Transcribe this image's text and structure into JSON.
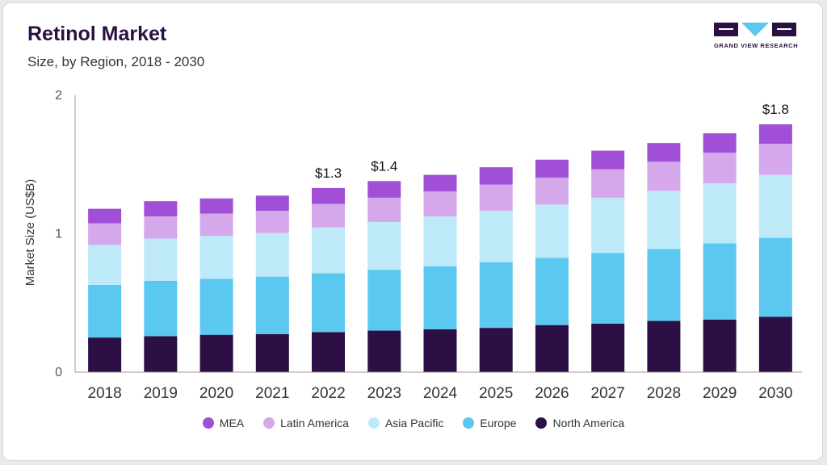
{
  "header": {
    "title": "Retinol Market",
    "subtitle": "Size, by Region, 2018 - 2030",
    "logo_text": "GRAND VIEW RESEARCH"
  },
  "colors": {
    "logo": "#2a1141",
    "logo_accent": "#5bc8f0"
  },
  "chart_data": {
    "type": "bar",
    "stacked": true,
    "categories": [
      "2018",
      "2019",
      "2020",
      "2021",
      "2022",
      "2023",
      "2024",
      "2025",
      "2026",
      "2027",
      "2028",
      "2029",
      "2030"
    ],
    "ylabel": "Market Size (US$B)",
    "ylim": [
      0,
      2
    ],
    "yticks": [
      0,
      1,
      2
    ],
    "grid": false,
    "legend_position": "bottom",
    "series": [
      {
        "name": "North America",
        "color": "#2b0f45",
        "values": [
          0.25,
          0.26,
          0.27,
          0.275,
          0.29,
          0.3,
          0.31,
          0.32,
          0.34,
          0.35,
          0.37,
          0.38,
          0.4
        ]
      },
      {
        "name": "Europe",
        "color": "#5bc8f0",
        "values": [
          0.38,
          0.4,
          0.405,
          0.415,
          0.425,
          0.44,
          0.455,
          0.475,
          0.485,
          0.51,
          0.52,
          0.55,
          0.57
        ]
      },
      {
        "name": "Asia Pacific",
        "color": "#bde9f9",
        "values": [
          0.29,
          0.305,
          0.31,
          0.315,
          0.33,
          0.345,
          0.36,
          0.37,
          0.385,
          0.4,
          0.42,
          0.435,
          0.455
        ]
      },
      {
        "name": "Latin America",
        "color": "#d5a8ec",
        "values": [
          0.155,
          0.16,
          0.16,
          0.16,
          0.17,
          0.175,
          0.18,
          0.19,
          0.195,
          0.205,
          0.21,
          0.22,
          0.225
        ]
      },
      {
        "name": "MEA",
        "color": "#a24fd8",
        "values": [
          0.105,
          0.11,
          0.11,
          0.11,
          0.115,
          0.12,
          0.12,
          0.125,
          0.13,
          0.135,
          0.135,
          0.14,
          0.14
        ]
      }
    ],
    "annotations": [
      {
        "category": "2022",
        "text": "$1.3"
      },
      {
        "category": "2023",
        "text": "$1.4"
      },
      {
        "category": "2030",
        "text": "$1.8"
      }
    ]
  }
}
